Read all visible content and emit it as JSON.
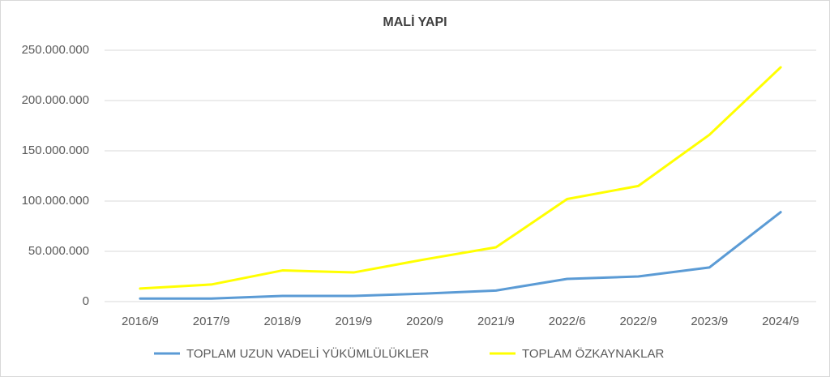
{
  "chart_data": {
    "type": "line",
    "title": "MALİ YAPI",
    "categories": [
      "2016/9",
      "2017/9",
      "2018/9",
      "2019/9",
      "2020/9",
      "2021/9",
      "2022/6",
      "2022/9",
      "2023/9",
      "2024/9"
    ],
    "series": [
      {
        "name": "TOPLAM UZUN VADELİ YÜKÜMLÜLÜKLER",
        "color": "#5b9bd5",
        "values": [
          3000000,
          3000000,
          5600000,
          5600000,
          8000000,
          11000000,
          22600000,
          25000000,
          34000000,
          89000000
        ]
      },
      {
        "name": "TOPLAM ÖZKAYNAKLAR",
        "color": "#ffff00",
        "values": [
          13000000,
          17000000,
          31000000,
          29000000,
          42000000,
          54000000,
          102000000,
          115000000,
          166000000,
          233000000
        ]
      }
    ],
    "ylim": [
      0,
      250000000
    ],
    "yticks": [
      0,
      {
        "value": 50000000,
        "label": "50.000.000"
      },
      {
        "value": 100000000,
        "label": "100.000.000"
      },
      {
        "value": 150000000,
        "label": "150.000.000"
      },
      {
        "value": 200000000,
        "label": "200.000.000"
      },
      {
        "value": 250000000,
        "label": "250.000.000"
      }
    ],
    "grid": true
  }
}
